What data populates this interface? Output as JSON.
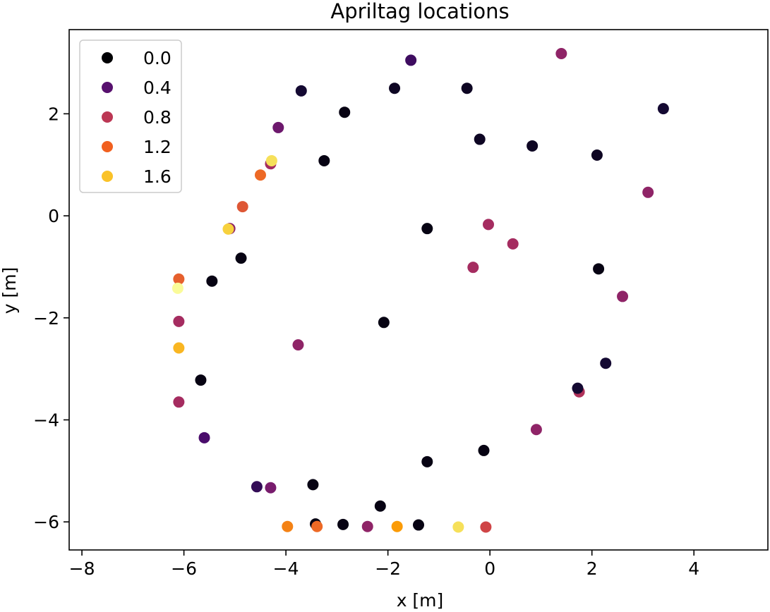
{
  "chart_data": {
    "type": "scatter",
    "title": "Apriltag locations",
    "xlabel": "x [m]",
    "ylabel": "y [m]",
    "xlim": [
      -8.25,
      5.45
    ],
    "ylim": [
      -6.55,
      3.65
    ],
    "xticks": [
      -8,
      -6,
      -4,
      -2,
      0,
      2,
      4
    ],
    "yticks": [
      -6,
      -4,
      -2,
      0,
      2
    ],
    "tick_labels_x": [
      "−8",
      "−6",
      "−4",
      "−2",
      "0",
      "2",
      "4"
    ],
    "tick_labels_y": [
      "−6",
      "−4",
      "−2",
      "0",
      "2"
    ],
    "grid": false,
    "legend_position": "upper-left",
    "legend": [
      {
        "label": "0.0",
        "color": "#000004"
      },
      {
        "label": "0.4",
        "color": "#57106e"
      },
      {
        "label": "0.8",
        "color": "#bc3754"
      },
      {
        "label": "1.2",
        "color": "#f1601f"
      },
      {
        "label": "1.6",
        "color": "#fac228"
      }
    ],
    "points": [
      {
        "x": -1.55,
        "y": 3.05,
        "c": 0.35
      },
      {
        "x": 1.4,
        "y": 3.18,
        "c": 0.7
      },
      {
        "x": -1.87,
        "y": 2.5,
        "c": 0.1
      },
      {
        "x": -0.45,
        "y": 2.5,
        "c": 0.1
      },
      {
        "x": -3.7,
        "y": 2.45,
        "c": 0.15
      },
      {
        "x": 3.4,
        "y": 2.1,
        "c": 0.15
      },
      {
        "x": -2.85,
        "y": 2.03,
        "c": 0.05
      },
      {
        "x": -4.15,
        "y": 1.73,
        "c": 0.55
      },
      {
        "x": -0.2,
        "y": 1.5,
        "c": 0.1
      },
      {
        "x": 0.83,
        "y": 1.37,
        "c": 0.1
      },
      {
        "x": 2.1,
        "y": 1.19,
        "c": 0.1
      },
      {
        "x": -3.25,
        "y": 1.08,
        "c": 0.05
      },
      {
        "x": -4.3,
        "y": 1.02,
        "c": 0.8
      },
      {
        "x": -4.28,
        "y": 1.08,
        "c": 1.7
      },
      {
        "x": -4.5,
        "y": 0.8,
        "c": 1.2
      },
      {
        "x": 3.1,
        "y": 0.46,
        "c": 0.7
      },
      {
        "x": -4.85,
        "y": 0.18,
        "c": 1.1
      },
      {
        "x": -1.23,
        "y": -0.25,
        "c": 0.05
      },
      {
        "x": -5.1,
        "y": -0.25,
        "c": 0.7
      },
      {
        "x": -5.13,
        "y": -0.26,
        "c": 1.6
      },
      {
        "x": -0.03,
        "y": -0.17,
        "c": 0.8
      },
      {
        "x": 0.45,
        "y": -0.55,
        "c": 0.8
      },
      {
        "x": -4.88,
        "y": -0.83,
        "c": 0.05
      },
      {
        "x": -0.33,
        "y": -1.01,
        "c": 0.8
      },
      {
        "x": 2.13,
        "y": -1.04,
        "c": 0.05
      },
      {
        "x": -6.1,
        "y": -1.24,
        "c": 1.15
      },
      {
        "x": -5.45,
        "y": -1.28,
        "c": 0.05
      },
      {
        "x": -6.12,
        "y": -1.42,
        "c": 1.95
      },
      {
        "x": 2.6,
        "y": -1.58,
        "c": 0.7
      },
      {
        "x": -6.1,
        "y": -2.07,
        "c": 0.8
      },
      {
        "x": -2.08,
        "y": -2.09,
        "c": 0.05
      },
      {
        "x": -3.76,
        "y": -2.53,
        "c": 0.7
      },
      {
        "x": -6.1,
        "y": -2.59,
        "c": 1.5
      },
      {
        "x": 2.27,
        "y": -2.89,
        "c": 0.15
      },
      {
        "x": -5.67,
        "y": -3.22,
        "c": 0.05
      },
      {
        "x": 1.75,
        "y": -3.45,
        "c": 0.85
      },
      {
        "x": 1.72,
        "y": -3.38,
        "c": 0.15
      },
      {
        "x": -6.1,
        "y": -3.65,
        "c": 0.8
      },
      {
        "x": 0.91,
        "y": -4.19,
        "c": 0.7
      },
      {
        "x": -5.6,
        "y": -4.35,
        "c": 0.4
      },
      {
        "x": -0.12,
        "y": -4.6,
        "c": 0.05
      },
      {
        "x": -1.23,
        "y": -4.82,
        "c": 0.05
      },
      {
        "x": -3.47,
        "y": -5.27,
        "c": 0.05
      },
      {
        "x": -4.57,
        "y": -5.31,
        "c": 0.3
      },
      {
        "x": -4.3,
        "y": -5.33,
        "c": 0.6
      },
      {
        "x": -2.15,
        "y": -5.69,
        "c": 0.05
      },
      {
        "x": -3.42,
        "y": -6.04,
        "c": 0.05
      },
      {
        "x": -2.88,
        "y": -6.05,
        "c": 0.05
      },
      {
        "x": -1.4,
        "y": -6.06,
        "c": 0.05
      },
      {
        "x": -3.39,
        "y": -6.09,
        "c": 1.2
      },
      {
        "x": -3.97,
        "y": -6.09,
        "c": 1.3
      },
      {
        "x": -2.4,
        "y": -6.09,
        "c": 0.7
      },
      {
        "x": -1.82,
        "y": -6.09,
        "c": 1.4
      },
      {
        "x": -0.62,
        "y": -6.1,
        "c": 1.7
      },
      {
        "x": -0.08,
        "y": -6.1,
        "c": 1.0
      }
    ]
  }
}
